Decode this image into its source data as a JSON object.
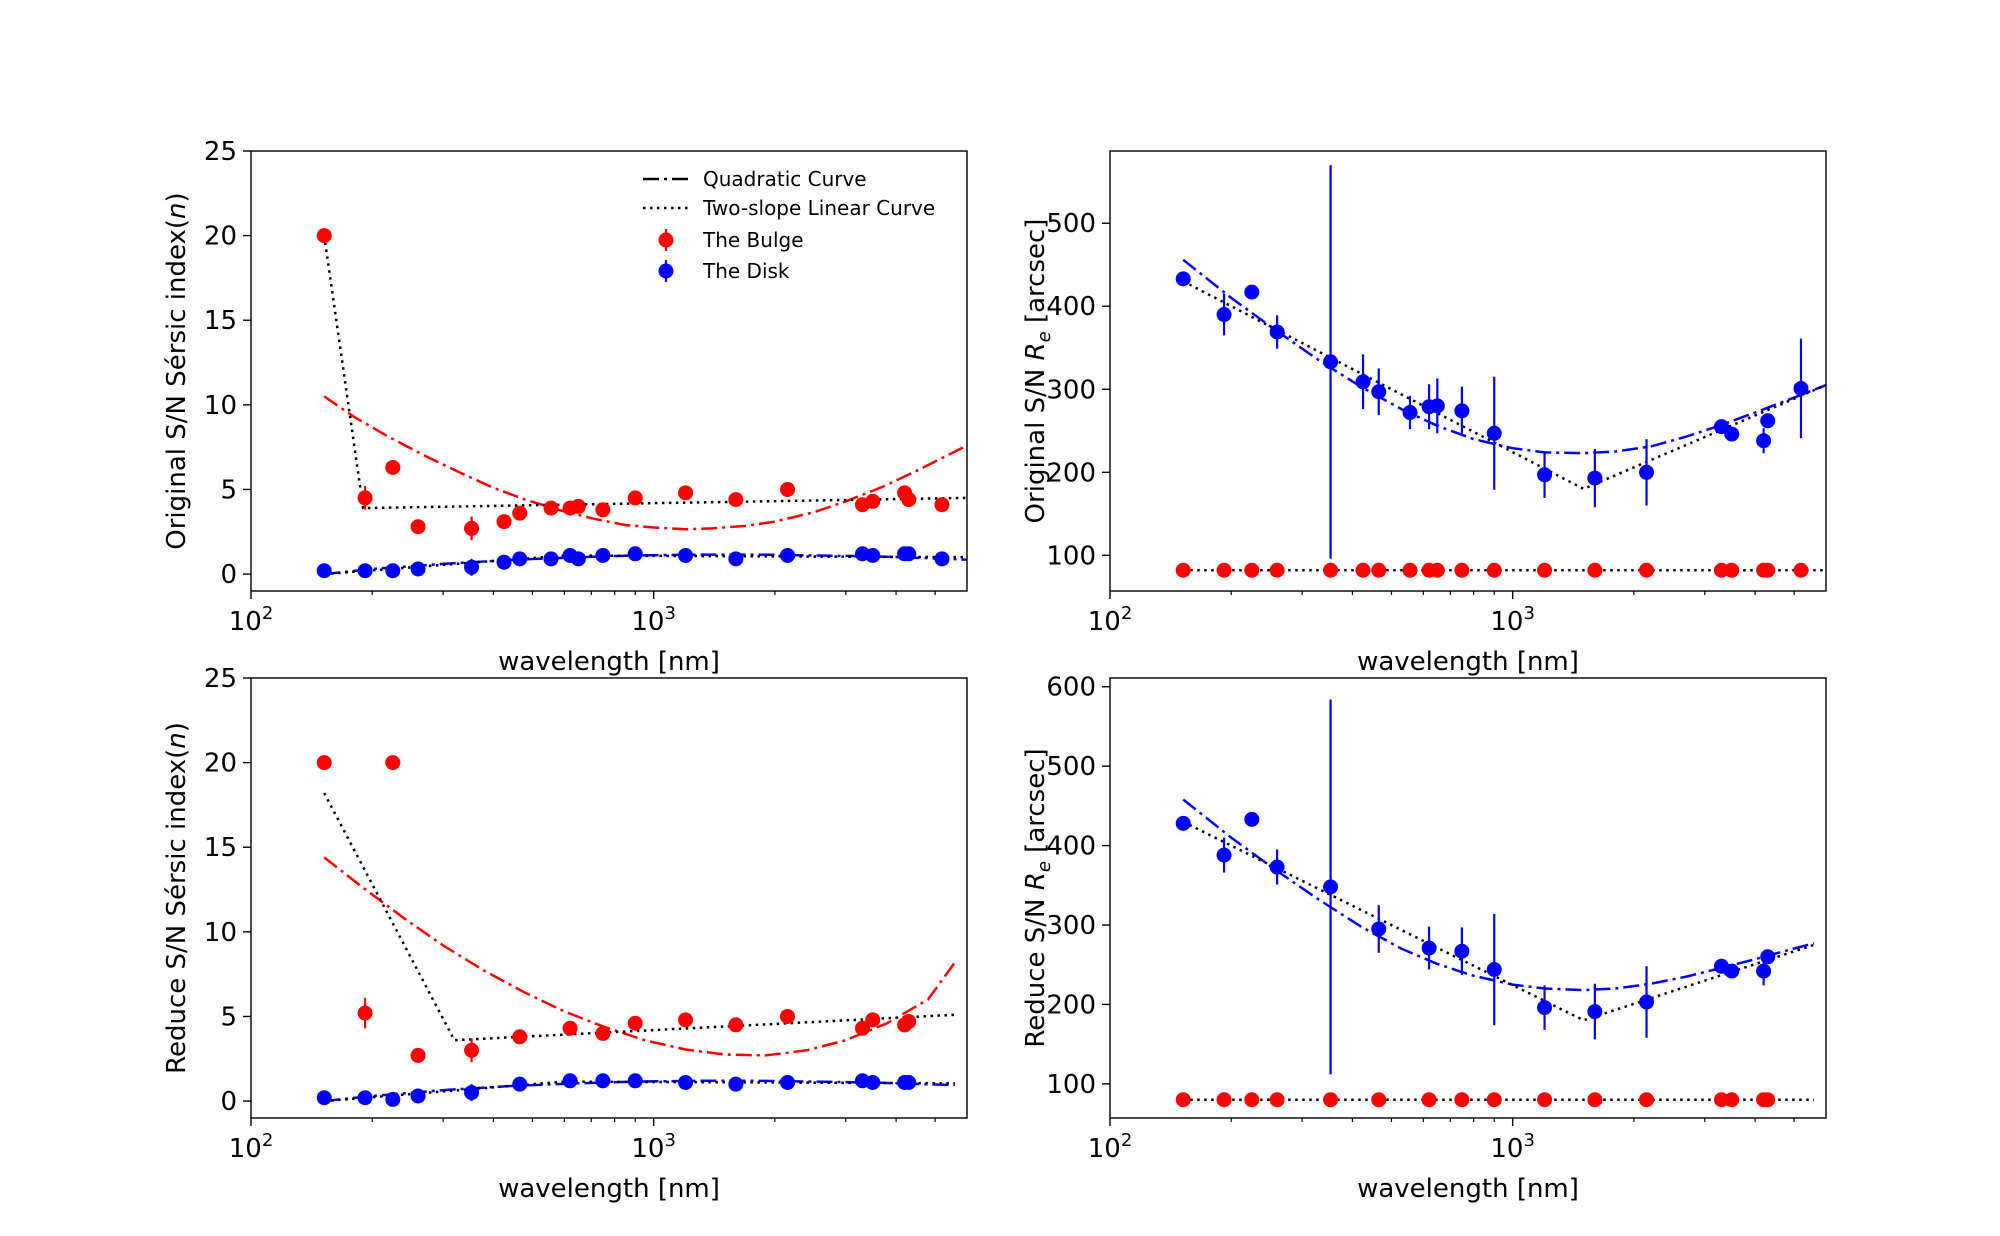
{
  "chart_data": [
    {
      "type": "scatter",
      "panel": "top-left",
      "ylabel": "Original S/N Sérsic index(n)",
      "ylabel_parts": [
        "Original S/N Sérsic index(",
        "n",
        ")"
      ],
      "xlabel": "wavelength [nm]",
      "xscale": "log",
      "xlim": [
        100,
        6000
      ],
      "ylim": [
        -1,
        25
      ],
      "yticks": [
        0,
        5,
        10,
        15,
        20,
        25
      ],
      "xticks": [
        {
          "value": 100,
          "base": "10",
          "exp": "2"
        },
        {
          "value": 1000,
          "base": "10",
          "exp": "3"
        }
      ],
      "legend": {
        "placement": "top-right",
        "entries": [
          "Quadratic Curve",
          "Two-slope Linear Curve",
          "The Bulge",
          "The Disk"
        ]
      },
      "series": [
        {
          "name": "The Bulge",
          "color": "#ff0000",
          "x": [
            152,
            192,
            225,
            260,
            353,
            425,
            465,
            556,
            620,
            650,
            748,
            900,
            1200,
            1600,
            2150,
            3300,
            3500,
            4200,
            4300,
            5200
          ],
          "y": [
            20,
            4.5,
            6.3,
            2.8,
            2.7,
            3.1,
            3.6,
            3.9,
            3.9,
            4.0,
            3.8,
            4.5,
            4.8,
            4.4,
            5.0,
            4.1,
            4.3,
            4.8,
            4.4,
            4.1
          ],
          "err": [
            0,
            0.7,
            0,
            0,
            0.7,
            0,
            0,
            0,
            0,
            0,
            0,
            0,
            0,
            0,
            0,
            0,
            0,
            0,
            0,
            0
          ]
        },
        {
          "name": "The Disk",
          "color": "#0000ff",
          "x": [
            152,
            192,
            225,
            260,
            353,
            425,
            465,
            556,
            620,
            650,
            748,
            900,
            1200,
            1600,
            2150,
            3300,
            3500,
            4200,
            4300,
            5200
          ],
          "y": [
            0.2,
            0.2,
            0.2,
            0.3,
            0.4,
            0.7,
            0.9,
            0.9,
            1.1,
            0.9,
            1.1,
            1.2,
            1.1,
            0.9,
            1.1,
            1.2,
            1.1,
            1.2,
            1.2,
            0.9
          ],
          "err": [
            0,
            0,
            0,
            0,
            0.5,
            0,
            0,
            0,
            0,
            0,
            0,
            0,
            0,
            0,
            0,
            0,
            0,
            0,
            0,
            0
          ]
        }
      ],
      "fits": [
        {
          "name": "Quadratic Curve",
          "series": "The Bulge",
          "color": "#ff0000",
          "style": "dashdot",
          "x": [
            152,
            180,
            220,
            270,
            330,
            400,
            480,
            580,
            700,
            850,
            1000,
            1200,
            1400,
            1700,
            2000,
            2500,
            3000,
            3700,
            4500,
            5500,
            6000
          ],
          "y": [
            10.5,
            9.3,
            8.1,
            7.0,
            6.0,
            5.1,
            4.4,
            3.8,
            3.3,
            2.9,
            2.75,
            2.65,
            2.7,
            2.85,
            3.1,
            3.65,
            4.3,
            5.15,
            6.1,
            7.15,
            7.6
          ]
        },
        {
          "name": "Two-slope Linear Curve",
          "series": "The Bulge",
          "color": "#000000",
          "style": "dotted",
          "x": [
            152,
            190,
            6000
          ],
          "y": [
            20,
            3.9,
            4.5
          ]
        },
        {
          "name": "Quadratic Curve",
          "series": "The Disk",
          "color": "#0000ff",
          "style": "dashdot",
          "x": [
            152,
            200,
            300,
            450,
            650,
            900,
            1300,
            1800,
            2500,
            3500,
            4700,
            6000
          ],
          "y": [
            0.0,
            0.3,
            0.6,
            0.85,
            1.0,
            1.1,
            1.15,
            1.15,
            1.1,
            1.05,
            0.95,
            0.85
          ]
        },
        {
          "name": "Two-slope Linear Curve",
          "series": "The Disk",
          "color": "#000000",
          "style": "dotted",
          "x": [
            152,
            600,
            6000
          ],
          "y": [
            0.0,
            1.1,
            1.0
          ]
        }
      ]
    },
    {
      "type": "scatter",
      "panel": "top-right",
      "ylabel": "Original S/N Re [arcsec]",
      "ylabel_parts": [
        "Original S/N ",
        "R",
        "e",
        " [arcsec]"
      ],
      "xlabel": "wavelength [nm]",
      "xscale": "log",
      "xlim": [
        100,
        6000
      ],
      "ylim": [
        57,
        587
      ],
      "yticks": [
        100,
        200,
        300,
        400,
        500
      ],
      "xticks": [
        {
          "value": 100,
          "base": "10",
          "exp": "2"
        },
        {
          "value": 1000,
          "base": "10",
          "exp": "3"
        }
      ],
      "series": [
        {
          "name": "The Bulge",
          "color": "#ff0000",
          "x": [
            152,
            192,
            225,
            260,
            353,
            425,
            465,
            556,
            620,
            650,
            748,
            900,
            1200,
            1600,
            2150,
            3300,
            3500,
            4200,
            4300,
            5200
          ],
          "y": [
            82,
            82,
            82,
            82,
            82,
            82,
            82,
            82,
            82,
            82,
            82,
            82,
            82,
            82,
            82,
            82,
            82,
            82,
            82,
            82
          ],
          "err": [
            0,
            0,
            0,
            0,
            0,
            0,
            0,
            0,
            0,
            0,
            0,
            0,
            0,
            0,
            0,
            0,
            0,
            0,
            0,
            0
          ]
        },
        {
          "name": "The Disk",
          "color": "#0000ff",
          "x": [
            152,
            192,
            225,
            260,
            353,
            425,
            465,
            556,
            620,
            650,
            748,
            900,
            1200,
            1600,
            2150,
            3300,
            3500,
            4200,
            4300,
            5200
          ],
          "y": [
            433,
            390,
            417,
            369,
            333,
            309,
            297,
            272,
            279,
            280,
            274,
            247,
            197,
            193,
            200,
            255,
            246,
            238,
            262,
            301
          ],
          "err": [
            0,
            25,
            0,
            20,
            237,
            33,
            28,
            20,
            27,
            33,
            29,
            68,
            28,
            35,
            40,
            0,
            0,
            15,
            0,
            60
          ]
        }
      ],
      "fits": [
        {
          "name": "Quadratic Curve",
          "series": "The Disk",
          "color": "#0000ff",
          "style": "dashdot",
          "x": [
            152,
            200,
            260,
            330,
            420,
            530,
            650,
            800,
            1000,
            1200,
            1500,
            1800,
            2200,
            2700,
            3300,
            4000,
            5000,
            6000
          ],
          "y": [
            456,
            410,
            370,
            335,
            303,
            276,
            256,
            240,
            229,
            224,
            223,
            225,
            231,
            243,
            257,
            272,
            290,
            305
          ]
        },
        {
          "name": "Two-slope Linear Curve",
          "series": "The Disk",
          "color": "#000000",
          "style": "dotted",
          "x": [
            152,
            1500,
            6000
          ],
          "y": [
            430,
            180,
            305
          ]
        },
        {
          "name": "Two-slope Linear Curve",
          "series": "The Bulge",
          "color": "#000000",
          "style": "dotted",
          "x": [
            152,
            6000
          ],
          "y": [
            82,
            82
          ]
        }
      ]
    },
    {
      "type": "scatter",
      "panel": "bottom-left",
      "ylabel": "Reduce S/N Sérsic index(n)",
      "ylabel_parts": [
        "Reduce S/N Sérsic index(",
        "n",
        ")"
      ],
      "xlabel": "wavelength [nm]",
      "xscale": "log",
      "xlim": [
        100,
        6000
      ],
      "ylim": [
        -1,
        25
      ],
      "yticks": [
        0,
        5,
        10,
        15,
        20,
        25
      ],
      "xticks": [
        {
          "value": 100,
          "base": "10",
          "exp": "2"
        },
        {
          "value": 1000,
          "base": "10",
          "exp": "3"
        }
      ],
      "series": [
        {
          "name": "The Bulge",
          "color": "#ff0000",
          "x": [
            152,
            192,
            225,
            260,
            353,
            465,
            620,
            748,
            900,
            1200,
            1600,
            2150,
            3300,
            3500,
            4200,
            4300
          ],
          "y": [
            20,
            5.2,
            20,
            2.7,
            3.0,
            3.8,
            4.3,
            4.0,
            4.6,
            4.8,
            4.5,
            5.0,
            4.3,
            4.8,
            4.5,
            4.7
          ],
          "err": [
            0,
            0.9,
            0,
            0,
            0.7,
            0,
            0,
            0,
            0,
            0,
            0,
            0,
            0,
            0,
            0,
            0
          ]
        },
        {
          "name": "The Disk",
          "color": "#0000ff",
          "x": [
            152,
            192,
            225,
            260,
            353,
            465,
            620,
            748,
            900,
            1200,
            1600,
            2150,
            3300,
            3500,
            4200,
            4300
          ],
          "y": [
            0.2,
            0.2,
            0.1,
            0.3,
            0.5,
            1.0,
            1.2,
            1.2,
            1.2,
            1.1,
            1.0,
            1.1,
            1.2,
            1.1,
            1.1,
            1.1
          ],
          "err": [
            0,
            0,
            0,
            0,
            0.5,
            0,
            0,
            0,
            0,
            0,
            0,
            0,
            0,
            0,
            0,
            0
          ]
        }
      ],
      "fits": [
        {
          "name": "Quadratic Curve",
          "series": "The Bulge",
          "color": "#ff0000",
          "style": "dashdot",
          "x": [
            152,
            190,
            240,
            300,
            380,
            480,
            600,
            750,
            950,
            1200,
            1500,
            1900,
            2400,
            3000,
            3800,
            4800,
            5600
          ],
          "y": [
            14.4,
            12.6,
            10.8,
            9.2,
            7.7,
            6.4,
            5.3,
            4.4,
            3.6,
            3.05,
            2.75,
            2.7,
            3.0,
            3.6,
            4.6,
            6.0,
            8.2
          ]
        },
        {
          "name": "Two-slope Linear Curve",
          "series": "The Bulge",
          "color": "#000000",
          "style": "dotted",
          "x": [
            152,
            320,
            5600
          ],
          "y": [
            18.2,
            3.6,
            5.1
          ]
        },
        {
          "name": "Quadratic Curve",
          "series": "The Disk",
          "color": "#0000ff",
          "style": "dashdot",
          "x": [
            152,
            200,
            300,
            450,
            650,
            900,
            1300,
            1800,
            2500,
            3500,
            4700,
            5600
          ],
          "y": [
            0.0,
            0.3,
            0.65,
            0.9,
            1.05,
            1.15,
            1.2,
            1.2,
            1.15,
            1.1,
            1.0,
            0.95
          ]
        },
        {
          "name": "Two-slope Linear Curve",
          "series": "The Disk",
          "color": "#000000",
          "style": "dotted",
          "x": [
            152,
            600,
            5600
          ],
          "y": [
            0.0,
            1.15,
            1.05
          ]
        }
      ]
    },
    {
      "type": "scatter",
      "panel": "bottom-right",
      "ylabel": "Reduce S/N Re [arcsec]",
      "ylabel_parts": [
        "Reduce S/N ",
        "R",
        "e",
        " [arcsec]"
      ],
      "xlabel": "wavelength [nm]",
      "xscale": "log",
      "xlim": [
        100,
        6000
      ],
      "ylim": [
        57,
        611
      ],
      "yticks": [
        100,
        200,
        300,
        400,
        500,
        600
      ],
      "xticks": [
        {
          "value": 100,
          "base": "10",
          "exp": "2"
        },
        {
          "value": 1000,
          "base": "10",
          "exp": "3"
        }
      ],
      "series": [
        {
          "name": "The Bulge",
          "color": "#ff0000",
          "x": [
            152,
            192,
            225,
            260,
            353,
            465,
            620,
            748,
            900,
            1200,
            1600,
            2150,
            3300,
            3500,
            4200,
            4300
          ],
          "y": [
            80,
            80,
            80,
            80,
            80,
            80,
            80,
            80,
            80,
            80,
            80,
            80,
            80,
            80,
            80,
            80
          ],
          "err": [
            0,
            0,
            0,
            0,
            0,
            0,
            0,
            0,
            0,
            0,
            0,
            0,
            0,
            0,
            0,
            0
          ]
        },
        {
          "name": "The Disk",
          "color": "#0000ff",
          "x": [
            152,
            192,
            225,
            260,
            353,
            465,
            620,
            748,
            900,
            1200,
            1600,
            2150,
            3300,
            3500,
            4200,
            4300
          ],
          "y": [
            428,
            388,
            433,
            373,
            348,
            295,
            271,
            267,
            244,
            196,
            191,
            203,
            248,
            242,
            242,
            260
          ],
          "err": [
            0,
            22,
            0,
            22,
            236,
            30,
            27,
            30,
            70,
            28,
            35,
            45,
            0,
            0,
            18,
            0
          ]
        }
      ],
      "fits": [
        {
          "name": "Quadratic Curve",
          "series": "The Disk",
          "color": "#0000ff",
          "style": "dashdot",
          "x": [
            152,
            200,
            260,
            330,
            420,
            530,
            650,
            800,
            1000,
            1200,
            1500,
            1800,
            2200,
            2700,
            3300,
            4000,
            4800,
            5600
          ],
          "y": [
            458,
            410,
            368,
            332,
            298,
            270,
            251,
            236,
            225,
            220,
            218,
            220,
            226,
            235,
            246,
            257,
            268,
            277
          ]
        },
        {
          "name": "Two-slope Linear Curve",
          "series": "The Disk",
          "color": "#000000",
          "style": "dotted",
          "x": [
            152,
            1500,
            5600
          ],
          "y": [
            430,
            180,
            275
          ]
        },
        {
          "name": "Two-slope Linear Curve",
          "series": "The Bulge",
          "color": "#000000",
          "style": "dotted",
          "x": [
            152,
            5600
          ],
          "y": [
            80,
            80
          ]
        }
      ]
    }
  ]
}
